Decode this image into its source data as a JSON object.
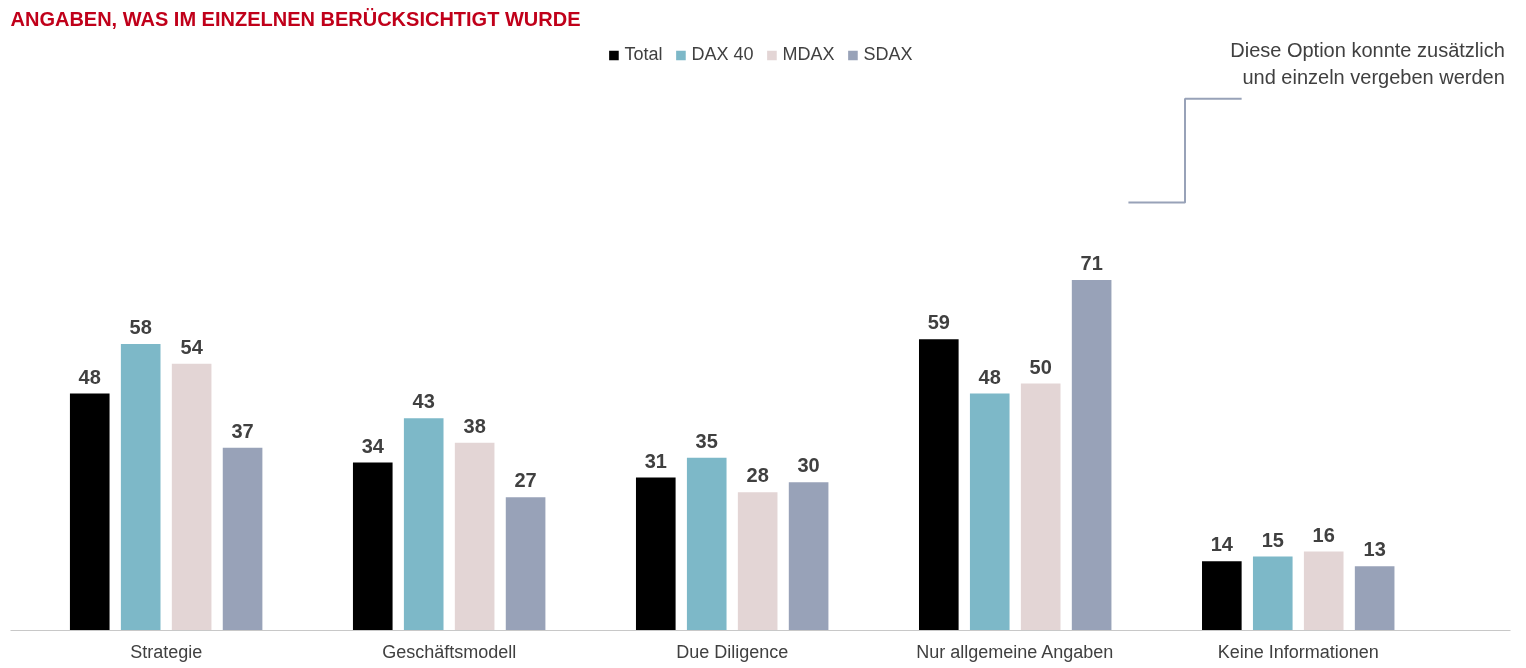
{
  "chart_data": {
    "type": "bar",
    "title": "ANGABEN, WAS IM EINZELNEN BERÜCKSICHTIGT WURDE",
    "categories": [
      "Strategie",
      "Geschäftsmodell",
      "Due Diligence",
      "Nur allgemeine Angaben",
      "Keine Informationen"
    ],
    "series": [
      {
        "name": "Total",
        "color": "#000000",
        "values": [
          48,
          34,
          31,
          59,
          14
        ]
      },
      {
        "name": "DAX 40",
        "color": "#7db8c8",
        "values": [
          58,
          43,
          35,
          48,
          15
        ]
      },
      {
        "name": "MDAX",
        "color": "#e3d5d5",
        "values": [
          54,
          38,
          28,
          50,
          16
        ]
      },
      {
        "name": "SDAX",
        "color": "#98a2b8",
        "values": [
          37,
          27,
          30,
          71,
          13
        ]
      }
    ],
    "data_labels": true,
    "legend": "top",
    "grid": false,
    "tick_labels": "x",
    "annotations": [
      "Diese Option konnte zusätzlich\nund einzeln vergeben werden"
    ]
  }
}
